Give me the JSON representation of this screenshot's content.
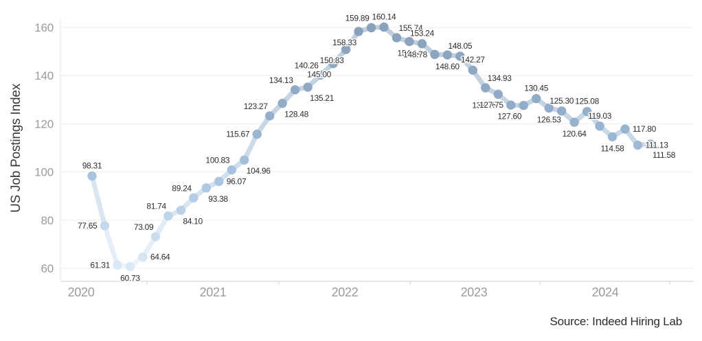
{
  "chart": {
    "y_axis_title": "US Job Postings Index",
    "source": "Source: Indeed Hiring Lab"
  },
  "chart_data": {
    "type": "line",
    "title": "",
    "xlabel": "",
    "ylabel": "US Job Postings Index",
    "source": "Source: Indeed Hiring Lab",
    "x_tick_labels": [
      "2020",
      "2021",
      "2022",
      "2023",
      "2024"
    ],
    "y_ticks": [
      60,
      80,
      100,
      120,
      140,
      160
    ],
    "ylim": [
      57,
      166
    ],
    "grid": true,
    "legend": false,
    "style": {
      "grid_color": "#ededed",
      "axis_line_color": "#cfcfcf",
      "plot_border_color": "#e7e7e7",
      "axis_text_color": "#9b9b9b",
      "label_text_color": "#2d2d2d",
      "color_stops_by_value": [
        [
          60,
          "#dceaf7"
        ],
        [
          95,
          "#abc7e2"
        ],
        [
          125,
          "#93aecb"
        ],
        [
          160,
          "#89a1ba"
        ]
      ],
      "line_lighten_toward_white": 0.47
    },
    "series": [
      {
        "name": "US Job Postings Index",
        "points": [
          {
            "value": 98.31,
            "label": "98.31",
            "label_side": "above"
          },
          {
            "value": 77.65,
            "label": "77.65",
            "label_side": "left"
          },
          {
            "value": 61.31,
            "label": "61.31",
            "label_side": "left"
          },
          {
            "value": 60.73,
            "label": "60.73",
            "label_side": "below"
          },
          {
            "value": 64.64,
            "label": "64.64",
            "label_side": "right"
          },
          {
            "value": 73.09,
            "label": "73.09",
            "label_side": "above-left"
          },
          {
            "value": 81.74,
            "label": "81.74",
            "label_side": "above-left"
          },
          {
            "value": 84.1,
            "label": "84.10",
            "label_side": "below-right"
          },
          {
            "value": 89.24,
            "label": "89.24",
            "label_side": "above-left"
          },
          {
            "value": 93.38,
            "label": "93.38",
            "label_side": "below-right"
          },
          {
            "value": 96.07,
            "label": "96.07",
            "label_side": "right"
          },
          {
            "value": 100.83,
            "label": "100.83",
            "label_side": "above-left"
          },
          {
            "value": 104.96,
            "label": "104.96",
            "label_side": "below-right"
          },
          {
            "value": 115.67,
            "label": "115.67",
            "label_side": "left"
          },
          {
            "value": 123.27,
            "label": "123.27",
            "label_side": "above-left"
          },
          {
            "value": 128.48,
            "label": "128.48",
            "label_side": "below-right"
          },
          {
            "value": 134.13,
            "label": "134.13",
            "label_side": "above-left"
          },
          {
            "value": 135.21,
            "label": "135.21",
            "label_side": "below-right"
          },
          {
            "value": 140.26,
            "label": "140.26",
            "label_side": "above-left"
          },
          {
            "value": 145.0,
            "label": "145.00",
            "label_side": "below-left"
          },
          {
            "value": 150.83,
            "label": "150.83",
            "label_side": "below-left"
          },
          {
            "value": 158.33,
            "label": "158.33",
            "label_side": "below-left"
          },
          {
            "value": 159.89,
            "label": "159.89",
            "label_side": "above-left"
          },
          {
            "value": 160.14,
            "label": "160.14",
            "label_side": "above"
          },
          {
            "value": 155.74,
            "label": "155.74",
            "label_side": "above-right"
          },
          {
            "value": 154.14,
            "label": "154.14",
            "label_side": "below"
          },
          {
            "value": 153.24,
            "label": "153.24",
            "label_side": "above"
          },
          {
            "value": 148.78,
            "label": "148.78",
            "label_side": "left"
          },
          {
            "value": 148.6,
            "label": "148.60",
            "label_side": "below"
          },
          {
            "value": 148.05,
            "label": "148.05",
            "label_side": "above"
          },
          {
            "value": 142.27,
            "label": "142.27",
            "label_side": "above"
          },
          {
            "value": 134.93,
            "label": "134.93",
            "label_side": "above-right"
          },
          {
            "value": 132.26,
            "label": "132.26",
            "label_side": "below-left"
          },
          {
            "value": 127.75,
            "label": "127.75",
            "label_side": "left"
          },
          {
            "value": 127.6,
            "label": "127.60",
            "label_side": "below-left"
          },
          {
            "value": 130.45,
            "label": "130.45",
            "label_side": "above"
          },
          {
            "value": 126.53,
            "label": "126.53",
            "label_side": "below"
          },
          {
            "value": 125.3,
            "label": "125.30",
            "label_side": "above"
          },
          {
            "value": 120.64,
            "label": "120.64",
            "label_side": "below"
          },
          {
            "value": 125.08,
            "label": "125.08",
            "label_side": "above"
          },
          {
            "value": 119.03,
            "label": "119.03",
            "label_side": "above"
          },
          {
            "value": 114.58,
            "label": "114.58",
            "label_side": "below"
          },
          {
            "value": 117.8,
            "label": "117.80",
            "label_side": "right"
          },
          {
            "value": 111.13,
            "label": "111.13",
            "label_side": "right"
          },
          {
            "value": 111.58,
            "label": "111.58",
            "label_side": "below-right"
          }
        ]
      }
    ]
  }
}
